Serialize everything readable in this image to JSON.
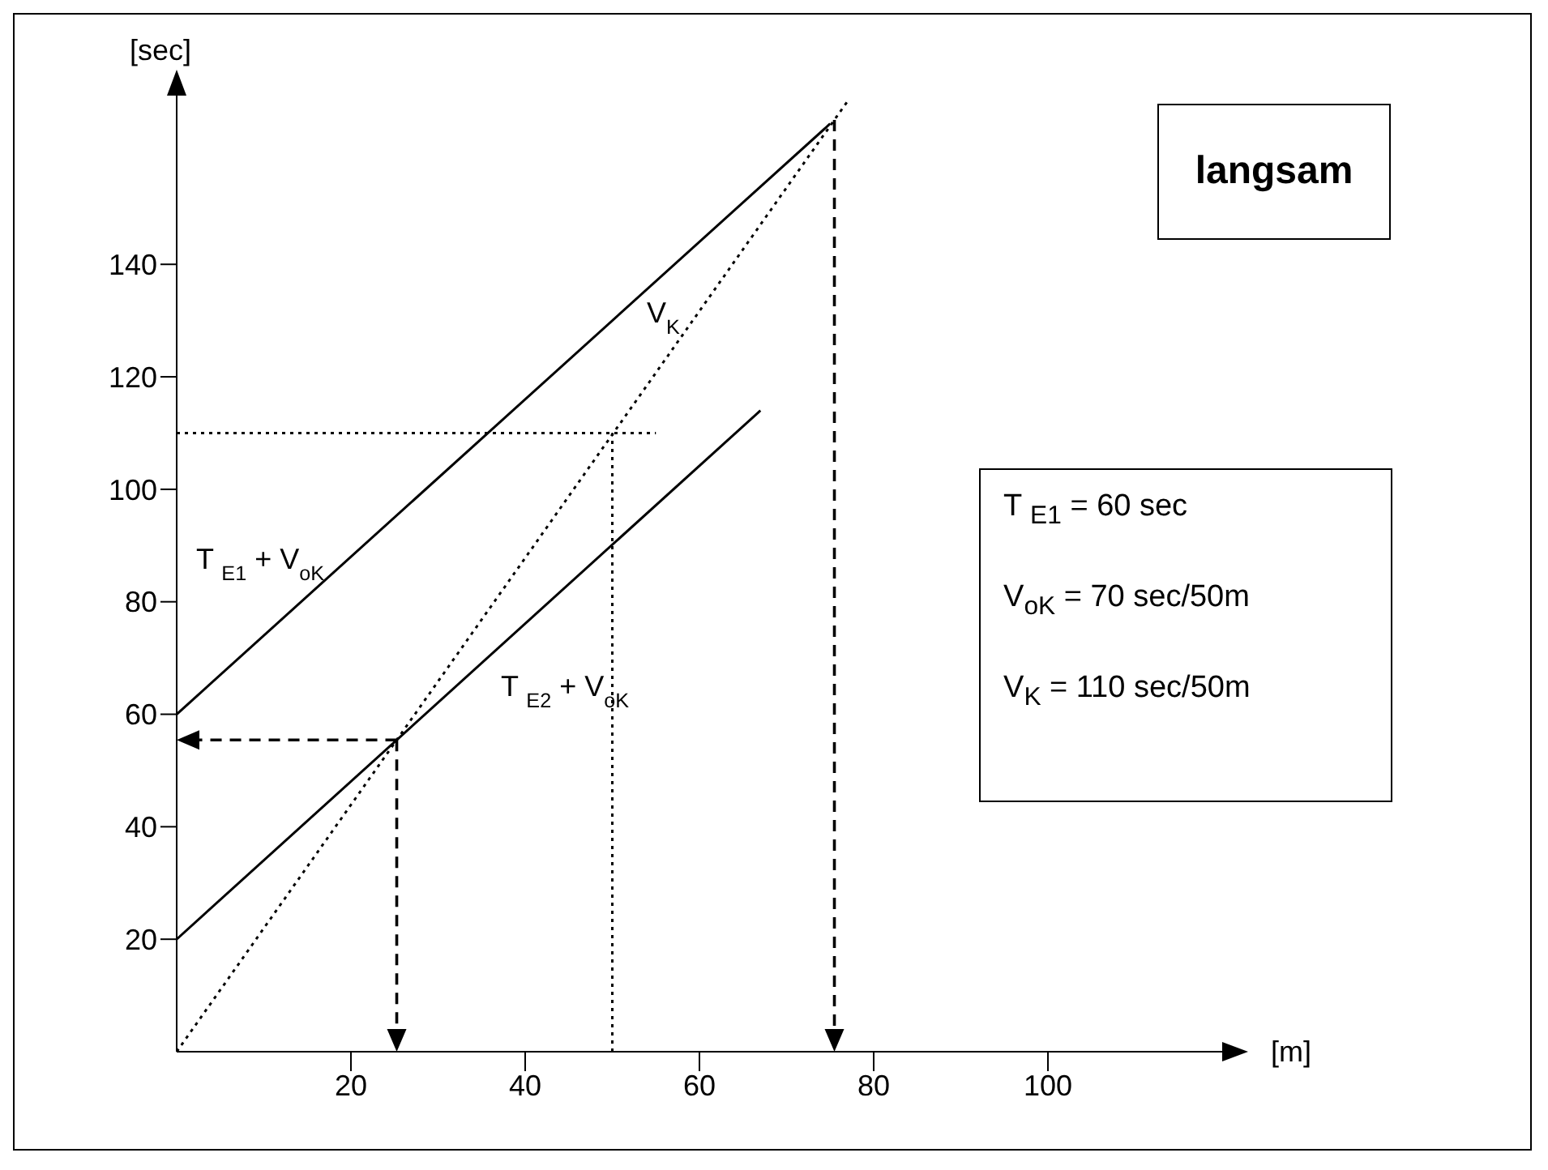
{
  "chart_data": {
    "type": "line",
    "xlabel": "[m]",
    "ylabel": "[sec]",
    "xlim": [
      0,
      120
    ],
    "ylim": [
      0,
      170
    ],
    "xticks": [
      20,
      40,
      60,
      80,
      100
    ],
    "yticks": [
      20,
      40,
      60,
      80,
      100,
      120,
      140
    ],
    "grid": false,
    "legend": false,
    "marker": "none",
    "series": [
      {
        "name": "T $_{E1}$ + V$_{oK}$",
        "color": "#000000",
        "line_style": "solid",
        "x": [
          0,
          75
        ],
        "values": [
          60,
          165
        ]
      },
      {
        "name": "T $_{E2}$ + V$_{oK}$",
        "color": "#000000",
        "line_style": "solid",
        "x": [
          0,
          67
        ],
        "values": [
          20,
          114
        ]
      },
      {
        "name": "V$_{K}$",
        "color": "#000000",
        "line_style": "dotted",
        "x": [
          0,
          77
        ],
        "values": [
          0,
          169
        ]
      },
      {
        "color": "#000000",
        "line_style": "dotted",
        "x": [
          0,
          55
        ],
        "values": [
          110,
          110
        ]
      },
      {
        "color": "#000000",
        "line_style": "dotted",
        "x": [
          50,
          50
        ],
        "values": [
          0,
          110
        ]
      }
    ],
    "annotations": [
      "langsam",
      "T $_{E1}$ = 60 sec",
      "V$_{oK}$ = 70 sec/50m",
      "V$_{K}$ = 110 sec/50m"
    ]
  }
}
